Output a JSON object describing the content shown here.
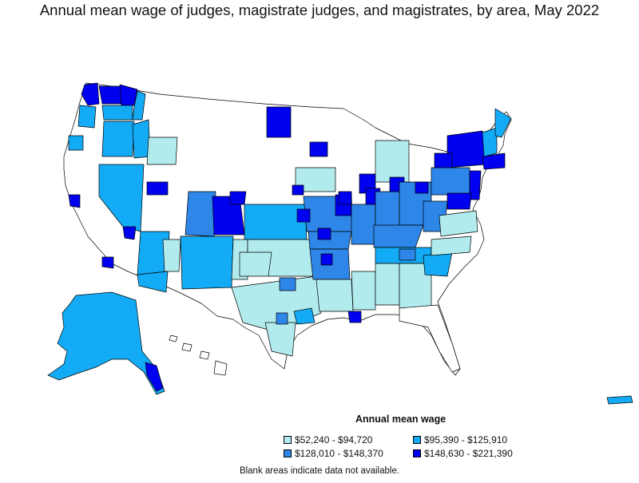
{
  "title": "Annual mean wage of judges, magistrate judges, and magistrates, by area, May 2022",
  "legend": {
    "title": "Annual mean wage",
    "items": [
      {
        "label": "$52,240 - $94,720",
        "color": "#b2ebee"
      },
      {
        "label": "$95,390 - $125,910",
        "color": "#14abf6"
      },
      {
        "label": "$128,010 - $148,370",
        "color": "#2e86e8"
      },
      {
        "label": "$148,630 - $221,390",
        "color": "#0000f0"
      }
    ]
  },
  "note": "Blank areas indicate data not available.",
  "colors": {
    "tier1": "#b2ebee",
    "tier2": "#14abf6",
    "tier3": "#2e86e8",
    "tier4": "#0000f0",
    "blank": "#ffffff",
    "border": "#000000"
  }
}
